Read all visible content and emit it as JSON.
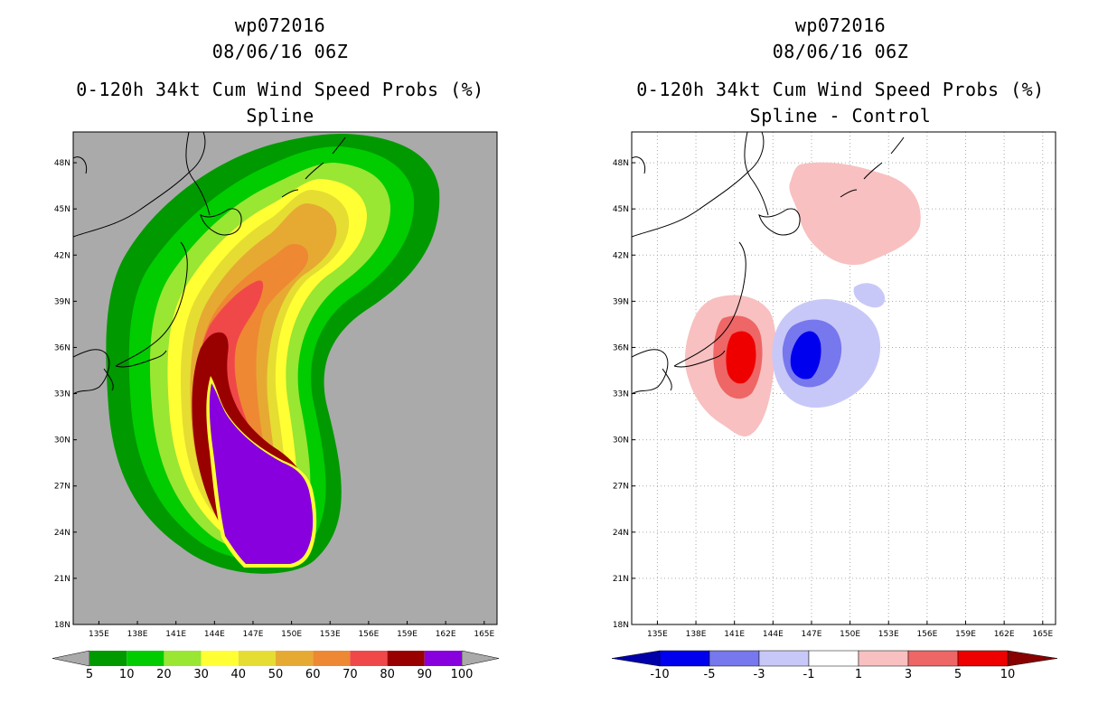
{
  "panels": [
    {
      "title_lines": [
        "wp072016",
        "08/06/16 06Z",
        "0-120h 34kt Cum Wind Speed Probs (%)",
        "Spline"
      ]
    },
    {
      "title_lines": [
        "wp072016",
        "08/06/16 06Z",
        "0-120h 34kt Cum Wind Speed Probs (%)",
        "Spline - Control"
      ]
    }
  ],
  "chart_data": [
    {
      "type": "heatmap",
      "title": "0-120h 34kt Cum Wind Speed Probs (%) - Spline",
      "storm": "wp072016",
      "time": "08/06/16 06Z",
      "x_ticks": [
        "135E",
        "138E",
        "141E",
        "144E",
        "147E",
        "150E",
        "153E",
        "156E",
        "159E",
        "162E",
        "165E"
      ],
      "y_ticks": [
        "48N",
        "45N",
        "42N",
        "39N",
        "36N",
        "33N",
        "30N",
        "27N",
        "24N",
        "21N",
        "18N"
      ],
      "lon_range": [
        133,
        166
      ],
      "lat_range": [
        18,
        50
      ],
      "colorbar": {
        "levels": [
          "5",
          "10",
          "20",
          "30",
          "40",
          "50",
          "60",
          "70",
          "80",
          "90",
          "100"
        ],
        "colors": [
          "#009900",
          "#00cc00",
          "#99e633",
          "#ffff33",
          "#e6dd33",
          "#e6aa33",
          "#ee8833",
          "#f04848",
          "#990000",
          "#8800dd"
        ]
      },
      "background_color": "#aaaaaa"
    },
    {
      "type": "heatmap",
      "title": "0-120h 34kt Cum Wind Speed Probs (%) - Spline - Control",
      "storm": "wp072016",
      "time": "08/06/16 06Z",
      "x_ticks": [
        "135E",
        "138E",
        "141E",
        "144E",
        "147E",
        "150E",
        "153E",
        "156E",
        "159E",
        "162E",
        "165E"
      ],
      "y_ticks": [
        "48N",
        "45N",
        "42N",
        "39N",
        "36N",
        "33N",
        "30N",
        "27N",
        "24N",
        "21N",
        "18N"
      ],
      "lon_range": [
        133,
        166
      ],
      "lat_range": [
        18,
        50
      ],
      "colorbar": {
        "levels": [
          "-10",
          "-5",
          "-3",
          "-1",
          "1",
          "3",
          "5",
          "10"
        ],
        "colors": [
          "#0000aa",
          "#0000ee",
          "#7777ee",
          "#c8c8f8",
          "#ffffff",
          "#f8c0c0",
          "#ee6666",
          "#ee0000",
          "#880000"
        ]
      },
      "grid": true
    }
  ]
}
